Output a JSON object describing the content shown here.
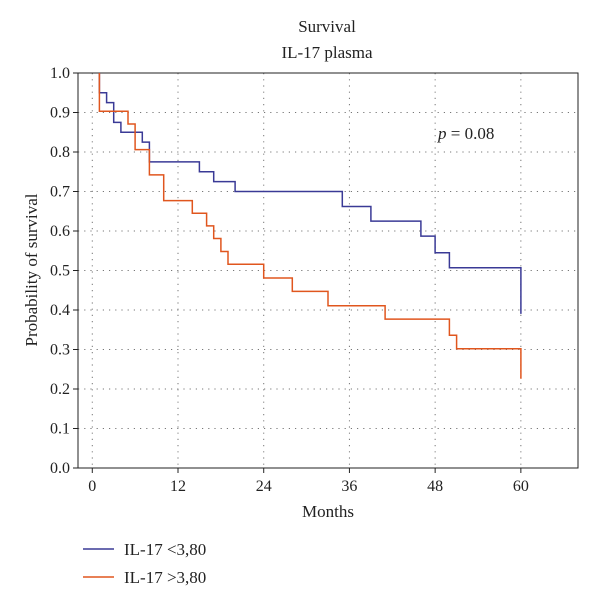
{
  "chart_data": {
    "type": "line",
    "title": "Survival",
    "subtitle": "IL-17 plasma",
    "xlabel": "Months",
    "ylabel": "Probability of survival",
    "xlim": [
      -2,
      68
    ],
    "ylim": [
      0,
      1
    ],
    "xticks": [
      0,
      12,
      24,
      36,
      48,
      60
    ],
    "yticks": [
      0.0,
      0.1,
      0.2,
      0.3,
      0.4,
      0.5,
      0.6,
      0.7,
      0.8,
      0.9,
      1.0
    ],
    "ytick_labels": [
      "0.0",
      "0.1",
      "0.2",
      "0.3",
      "0.4",
      "0.5",
      "0.6",
      "0.7",
      "0.8",
      "0.9",
      "1.0"
    ],
    "grid": true,
    "legend_position": "bottom-left",
    "annotation": {
      "italic": "p",
      "rest": " = 0.08"
    },
    "series": [
      {
        "name": "IL-17 <3,80",
        "color": "#3a3a96",
        "step": true,
        "x": [
          1,
          1,
          2,
          2,
          3,
          3,
          4,
          4,
          7,
          7,
          8,
          8,
          9,
          9,
          15,
          15,
          17,
          17,
          20,
          20,
          35,
          35,
          39,
          39,
          46,
          46,
          48,
          48,
          50,
          50,
          60,
          60
        ],
        "y": [
          1.0,
          0.95,
          0.95,
          0.925,
          0.925,
          0.875,
          0.875,
          0.85,
          0.85,
          0.825,
          0.825,
          0.775,
          0.775,
          0.775,
          0.775,
          0.75,
          0.75,
          0.725,
          0.725,
          0.7,
          0.7,
          0.662,
          0.662,
          0.625,
          0.625,
          0.587,
          0.587,
          0.545,
          0.545,
          0.507,
          0.507,
          0.39
        ]
      },
      {
        "name": "IL-17 >3,80",
        "color": "#e0561e",
        "step": true,
        "x": [
          1,
          1,
          5,
          5,
          6,
          6,
          8,
          8,
          10,
          10,
          14,
          14,
          16,
          16,
          17,
          17,
          18,
          18,
          19,
          19,
          24,
          24,
          28,
          28,
          33,
          33,
          41,
          41,
          50,
          50,
          51,
          51,
          60,
          60
        ],
        "y": [
          1.0,
          0.903,
          0.903,
          0.871,
          0.871,
          0.806,
          0.806,
          0.742,
          0.742,
          0.677,
          0.677,
          0.645,
          0.645,
          0.613,
          0.613,
          0.581,
          0.581,
          0.548,
          0.548,
          0.516,
          0.516,
          0.481,
          0.481,
          0.447,
          0.447,
          0.411,
          0.411,
          0.377,
          0.377,
          0.336,
          0.336,
          0.302,
          0.302,
          0.226
        ]
      }
    ]
  }
}
